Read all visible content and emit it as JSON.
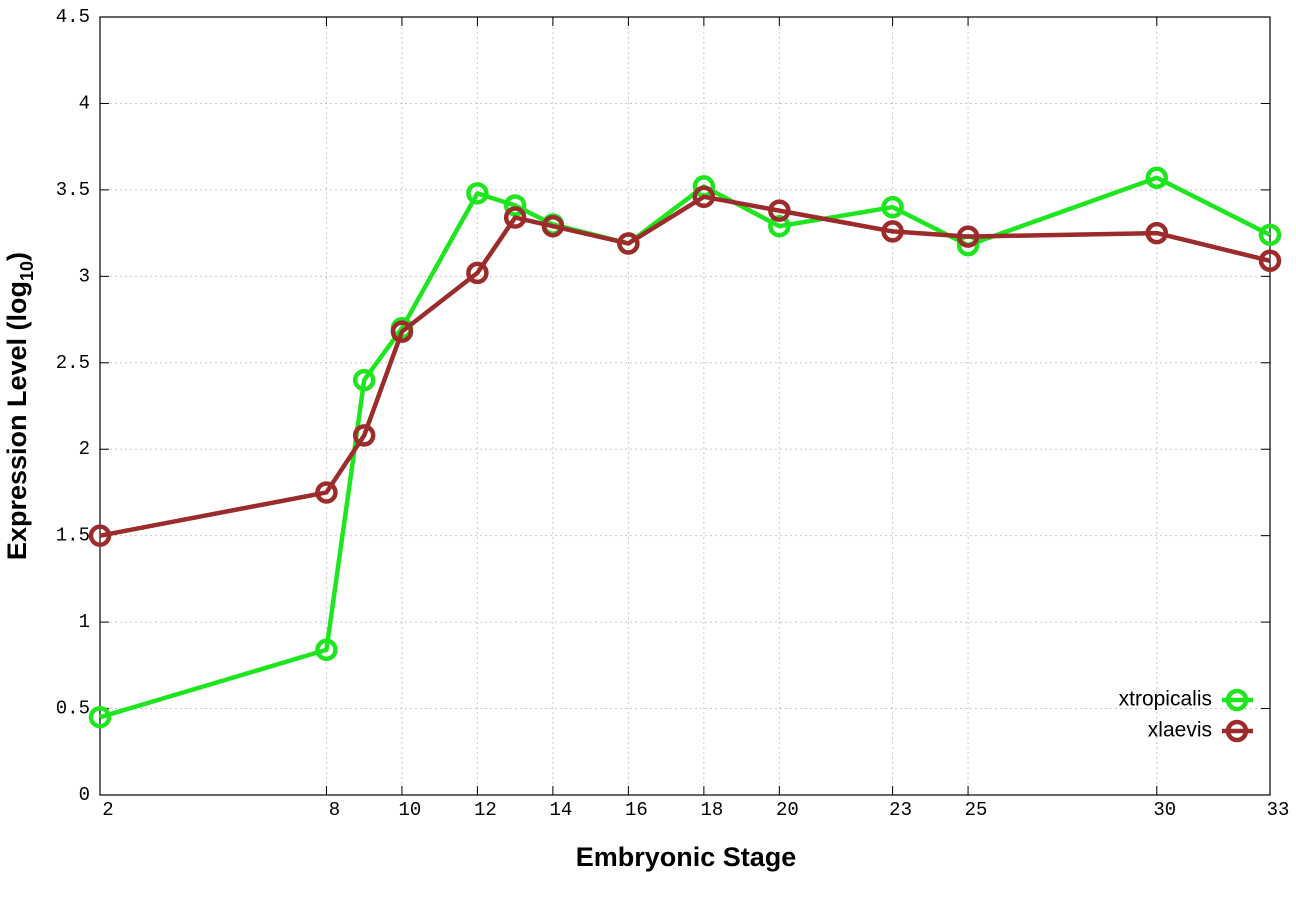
{
  "chart_data": {
    "type": "line",
    "x_label": "Embryonic Stage",
    "y_label": [
      "Expression Level (log",
      "10",
      ")"
    ],
    "x": [
      2,
      8,
      9,
      10,
      12,
      13,
      14,
      16,
      18,
      20,
      23,
      25,
      30,
      33
    ],
    "series": [
      {
        "name": "xtropicalis",
        "color": "#1ee61e",
        "values": [
          0.45,
          0.84,
          2.4,
          2.7,
          3.48,
          3.41,
          3.3,
          3.19,
          3.52,
          3.29,
          3.4,
          3.18,
          3.57,
          3.24
        ]
      },
      {
        "name": "xlaevis",
        "color": "#9c2b2b",
        "values": [
          1.5,
          1.75,
          2.08,
          2.68,
          3.02,
          3.34,
          3.29,
          3.19,
          3.46,
          3.38,
          3.26,
          3.23,
          3.25,
          3.09
        ]
      }
    ],
    "xlim": [
      2,
      33
    ],
    "xticks": [
      2,
      8,
      10,
      12,
      14,
      16,
      18,
      20,
      23,
      25,
      30,
      33
    ],
    "ylim": [
      0,
      4.5
    ],
    "yticks": [
      0,
      0.5,
      1,
      1.5,
      2,
      2.5,
      3,
      3.5,
      4,
      4.5
    ],
    "grid": true,
    "legend": "lower right"
  }
}
